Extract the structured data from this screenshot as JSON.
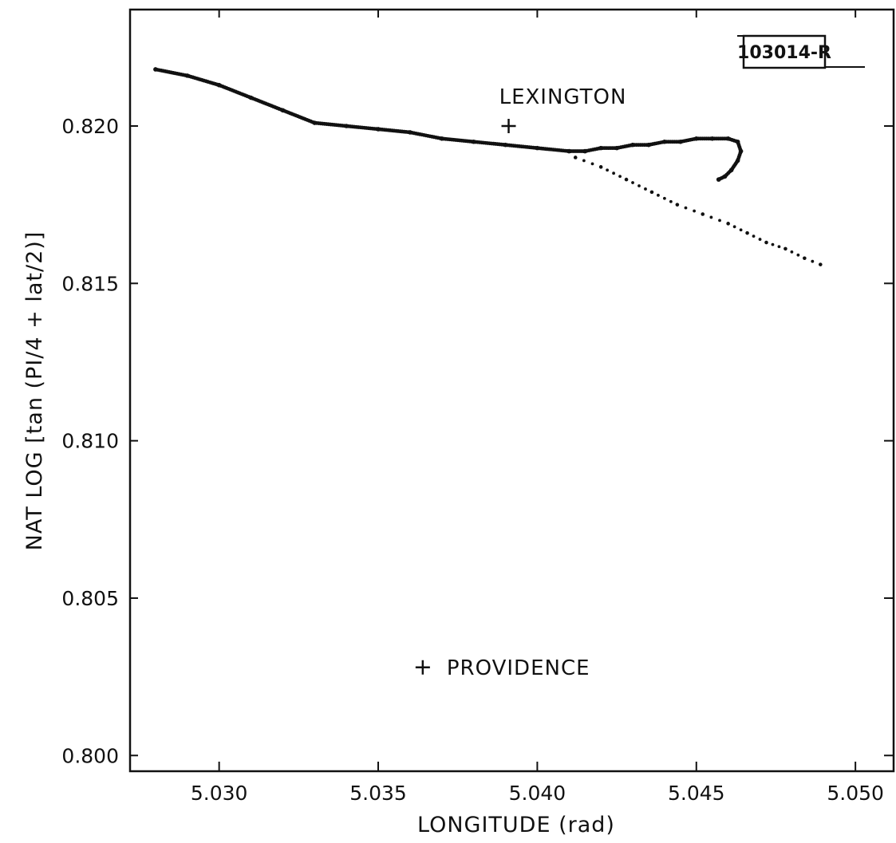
{
  "chart_data": {
    "type": "scatter",
    "title": "",
    "xlabel": "LONGITUDE  (rad)",
    "ylabel": "NAT LOG [tan (PI/4 + lat/2)]",
    "xlim": [
      5.0272,
      5.0512
    ],
    "ylim": [
      0.7995,
      0.8237
    ],
    "xticks": [
      "5.030",
      "5.035",
      "5.040",
      "5.045",
      "5.050"
    ],
    "yticks": [
      "0.800",
      "0.805",
      "0.810",
      "0.815",
      "0.820"
    ],
    "grid": false,
    "legend": "none",
    "figure_id": "103014-R",
    "series": [
      {
        "style": "dense-track",
        "x": [
          5.028,
          5.029,
          5.03,
          5.031,
          5.032,
          5.033,
          5.034,
          5.035,
          5.036,
          5.037,
          5.038,
          5.039,
          5.04,
          5.041,
          5.0415,
          5.042,
          5.0425,
          5.043,
          5.0435,
          5.044,
          5.0445,
          5.045,
          5.0455,
          5.046,
          5.0463,
          5.0464,
          5.0463,
          5.0461,
          5.0459,
          5.0457
        ],
        "y": [
          0.8218,
          0.8216,
          0.8213,
          0.8209,
          0.8205,
          0.8201,
          0.82,
          0.8199,
          0.8198,
          0.8196,
          0.8195,
          0.8194,
          0.8193,
          0.8192,
          0.8192,
          0.8193,
          0.8193,
          0.8194,
          0.8194,
          0.8195,
          0.8195,
          0.8196,
          0.8196,
          0.8196,
          0.8195,
          0.8192,
          0.8189,
          0.8186,
          0.8184,
          0.8183
        ]
      },
      {
        "style": "sparse-dots",
        "x": [
          5.0412,
          5.042,
          5.0428,
          5.0436,
          5.0444,
          5.0452,
          5.046,
          5.0466,
          5.0472,
          5.0478,
          5.0484,
          5.0489
        ],
        "y": [
          0.819,
          0.8187,
          0.8183,
          0.8179,
          0.8175,
          0.8172,
          0.8169,
          0.8166,
          0.8163,
          0.8161,
          0.8158,
          0.8156
        ]
      }
    ],
    "annotations": [
      {
        "text": "LEXINGTON",
        "x": 5.0391,
        "y": 0.82
      },
      {
        "text": "PROVIDENCE",
        "x": 5.0364,
        "y": 0.8028
      }
    ]
  }
}
